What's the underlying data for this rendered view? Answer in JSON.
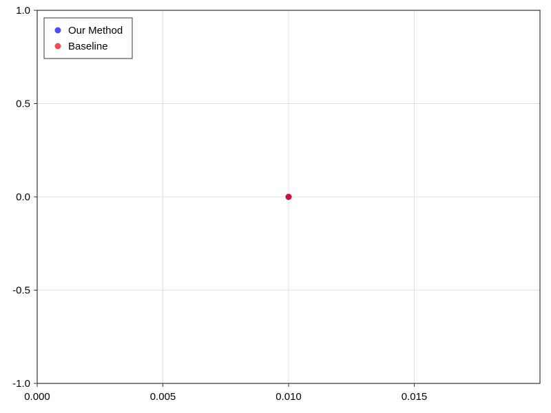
{
  "chart_data": {
    "type": "scatter",
    "title": "",
    "xlabel": "",
    "ylabel": "",
    "xlim": [
      0,
      0.02
    ],
    "ylim": [
      -1.0,
      1.0
    ],
    "x_ticks": [
      0.0,
      0.005,
      0.01,
      0.015
    ],
    "x_tick_labels": [
      "0.000",
      "0.005",
      "0.010",
      "0.015"
    ],
    "y_ticks": [
      -1.0,
      -0.5,
      0.0,
      0.5,
      1.0
    ],
    "y_tick_labels": [
      "-1.0",
      "-0.5",
      "0.0",
      "0.5",
      "1.0"
    ],
    "grid": true,
    "legend_position": "top-left",
    "series": [
      {
        "name": "Our Method",
        "color": "#3c3cf0",
        "points": [
          {
            "x": 0.01,
            "y": 0.0
          }
        ]
      },
      {
        "name": "Baseline",
        "color": "#f03c3c",
        "points": [
          {
            "x": 0.01,
            "y": 0.0
          }
        ]
      }
    ],
    "overlap_color": "#c8103c"
  }
}
